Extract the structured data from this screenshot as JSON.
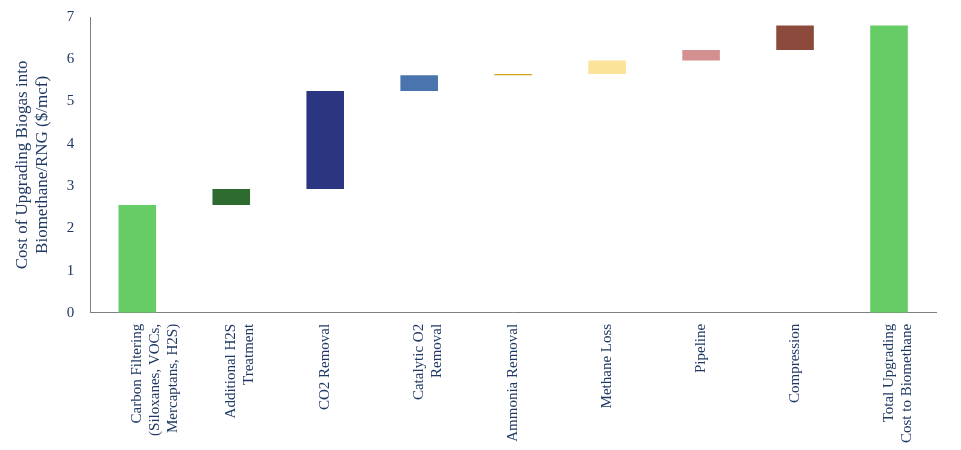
{
  "chart_data": {
    "type": "waterfall",
    "y_label": [
      "Cost of Upgrading Biogas into",
      "Biomethane/RNG ($/mcf)"
    ],
    "categories": [
      "Carbon Filtering (Siloxanes, VOCs, Mercaptans, H2S)",
      "Additional H2S Treatment",
      "CO2 Removal",
      "Catalytic O2 Removal",
      "Ammonia Removal",
      "Methane Loss",
      "Pipeline",
      "Compression",
      "Total Upgrading Cost to Biomethane"
    ],
    "values": [
      2.55,
      0.38,
      2.32,
      0.37,
      0.03,
      0.32,
      0.25,
      0.58,
      6.8
    ],
    "colors": [
      "#66cc66",
      "#2e6b30",
      "#2b3580",
      "#4a74ad",
      "#d4a017",
      "#fbe49a",
      "#d49090",
      "#8b4a3c",
      "#66cc66"
    ],
    "ylim": [
      0,
      7
    ],
    "yticks": [
      0,
      1,
      2,
      3,
      4,
      5,
      6,
      7
    ],
    "grid": false
  }
}
